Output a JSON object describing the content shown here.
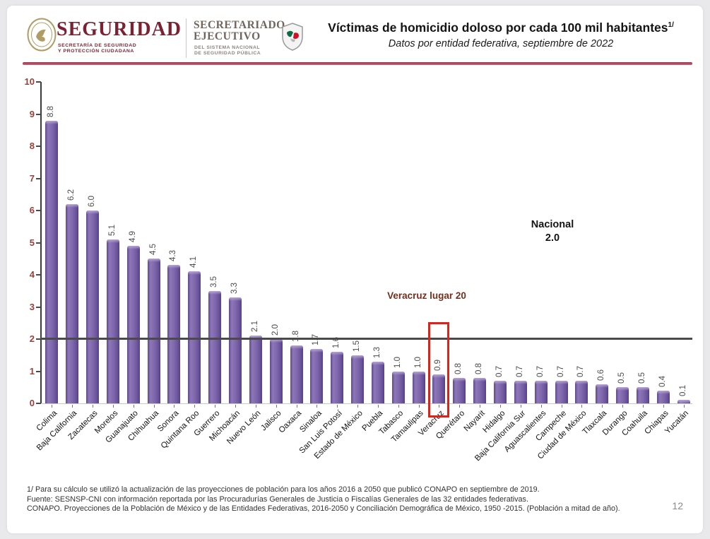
{
  "header": {
    "brand_name": "SEGURIDAD",
    "brand_sub1": "SECRETARÍA DE SEGURIDAD",
    "brand_sub2": "Y PROTECCIÓN CIUDADANA",
    "secretariado_line1": "SECRETARIADO",
    "secretariado_line2": "EJECUTIVO",
    "secretariado_sub1": "DEL SISTEMA NACIONAL",
    "secretariado_sub2": "DE SEGURIDAD PÚBLICA",
    "title": "Víctimas de homicidio doloso por cada 100 mil habitantes",
    "title_sup": "1/",
    "subtitle": "Datos por entidad federativa, septiembre de 2022"
  },
  "chart_data": {
    "type": "bar",
    "title": "Víctimas de homicidio doloso por cada 100 mil habitantes",
    "subtitle": "Datos por entidad federativa, septiembre de 2022",
    "categories": [
      "Colima",
      "Baja California",
      "Zacatecas",
      "Morelos",
      "Guanajuato",
      "Chihuahua",
      "Sonora",
      "Quintana Roo",
      "Guerrero",
      "Michoacán",
      "Nuevo León",
      "Jalisco",
      "Oaxaca",
      "Sinaloa",
      "San Luis Potosí",
      "Estado de México",
      "Puebla",
      "Tabasco",
      "Tamaulipas",
      "Veracruz",
      "Querétaro",
      "Nayarit",
      "Hidalgo",
      "Baja California Sur",
      "Aguascalientes",
      "Campeche",
      "Ciudad de México",
      "Tlaxcala",
      "Durango",
      "Coahuila",
      "Chiapas",
      "Yucatán"
    ],
    "values": [
      8.8,
      6.2,
      6.0,
      5.1,
      4.9,
      4.5,
      4.3,
      4.1,
      3.5,
      3.3,
      2.1,
      2.0,
      1.8,
      1.7,
      1.6,
      1.5,
      1.3,
      1.0,
      1.0,
      0.9,
      0.8,
      0.8,
      0.7,
      0.7,
      0.7,
      0.7,
      0.7,
      0.6,
      0.5,
      0.5,
      0.4,
      0.1
    ],
    "value_labels": [
      "8.8",
      "6.2",
      "6.0",
      "5.1",
      "4.9",
      "4.5",
      "4.3",
      "4.1",
      "3.5",
      "3.3",
      "2.1",
      "2.0",
      "1.8",
      "1.7",
      "1.6",
      "1.5",
      "1.3",
      "1.0",
      "1.0",
      "0.9",
      "0.8",
      "0.8",
      "0.7",
      "0.7",
      "0.7",
      "0.7",
      "0.7",
      "0.6",
      "0.5",
      "0.5",
      "0.4",
      "0.1"
    ],
    "xlabel": "",
    "ylabel": "",
    "ylim": [
      0,
      10
    ],
    "yticks": [
      0,
      1,
      2,
      3,
      4,
      5,
      6,
      7,
      8,
      9,
      10
    ],
    "grid": false,
    "legend": false,
    "reference_line": {
      "label": "Nacional",
      "value": 2.0,
      "value_label": "2.0",
      "color": "#4a4a4a"
    },
    "highlight": {
      "category": "Veracruz",
      "annotation": "Veracruz lugar  20",
      "box_color": "#df2217"
    },
    "bar_color": "#7c64aa"
  },
  "annotations": {
    "nacional_label": "Nacional",
    "nacional_value": "2.0",
    "veracruz_note": "Veracruz lugar  20"
  },
  "footer": {
    "line1": "1/ Para su cálculo se utilizó la actualización de las proyecciones de población para los años 2016 a 2050 que publicó CONAPO en septiembre de 2019.",
    "line2": "Fuente: SESNSP-CNI con información reportada por las Procuradurías Generales de Justicia o Fiscalías Generales de las 32 entidades federativas.",
    "line3": "CONAPO. Proyecciones de la Población de México y de las Entidades Federativas, 2016-2050 y Conciliación Demográfica de México, 1950 -2015. (Población a mitad de año).",
    "page_number": "12"
  }
}
